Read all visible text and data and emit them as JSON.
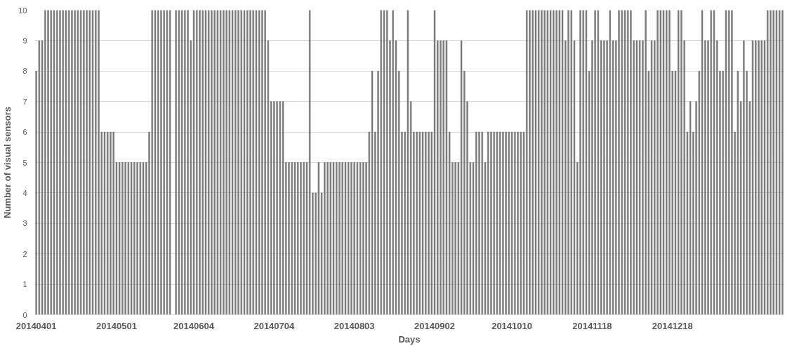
{
  "chart_data": {
    "type": "bar",
    "xlabel": "Days",
    "ylabel": "Number of visual sensors",
    "categories": [
      "20140401",
      null,
      null,
      null,
      null,
      null,
      null,
      null,
      null,
      null,
      null,
      null,
      null,
      null,
      null,
      null,
      null,
      null,
      null,
      null,
      null,
      null,
      null,
      null,
      null,
      null,
      null,
      "20140501",
      null,
      null,
      null,
      null,
      null,
      null,
      null,
      null,
      null,
      null,
      null,
      null,
      null,
      null,
      null,
      null,
      null,
      null,
      null,
      null,
      null,
      null,
      null,
      null,
      null,
      "20140604",
      null,
      null,
      null,
      null,
      null,
      null,
      null,
      null,
      null,
      null,
      null,
      null,
      null,
      null,
      null,
      null,
      null,
      null,
      null,
      null,
      null,
      null,
      null,
      null,
      null,
      null,
      "20140704",
      null,
      null,
      null,
      null,
      null,
      null,
      null,
      null,
      null,
      null,
      null,
      null,
      null,
      null,
      null,
      null,
      null,
      null,
      null,
      null,
      null,
      null,
      null,
      null,
      null,
      null,
      "20140803",
      null,
      null,
      null,
      null,
      null,
      null,
      null,
      null,
      null,
      null,
      null,
      null,
      null,
      null,
      null,
      null,
      null,
      null,
      null,
      null,
      null,
      null,
      null,
      null,
      null,
      null,
      "20140902",
      null,
      null,
      null,
      null,
      null,
      null,
      null,
      null,
      null,
      null,
      null,
      null,
      null,
      null,
      null,
      null,
      null,
      null,
      null,
      null,
      null,
      null,
      null,
      null,
      null,
      "20141010",
      null,
      null,
      null,
      null,
      null,
      null,
      null,
      null,
      null,
      null,
      null,
      null,
      null,
      null,
      null,
      null,
      null,
      null,
      null,
      null,
      null,
      null,
      null,
      null,
      null,
      null,
      "20141118",
      null,
      null,
      null,
      null,
      null,
      null,
      null,
      null,
      null,
      null,
      null,
      null,
      null,
      null,
      null,
      null,
      null,
      null,
      null,
      null,
      null,
      null,
      null,
      null,
      null,
      null,
      "20141218",
      null,
      null,
      null,
      null,
      null,
      null,
      null,
      null,
      null,
      null,
      null,
      null,
      null,
      null,
      null,
      null,
      null,
      null,
      null,
      null,
      null,
      null,
      null,
      null,
      null,
      null,
      null,
      null,
      null,
      null,
      null,
      null,
      null,
      null,
      null,
      null,
      null
    ],
    "values": [
      8,
      9,
      9,
      10,
      10,
      10,
      10,
      10,
      10,
      10,
      10,
      10,
      10,
      10,
      10,
      10,
      10,
      10,
      10,
      10,
      10,
      10,
      6,
      6,
      6,
      6,
      6,
      5,
      5,
      5,
      5,
      5,
      5,
      5,
      5,
      5,
      5,
      5,
      6,
      10,
      10,
      10,
      10,
      10,
      10,
      10,
      null,
      10,
      10,
      10,
      10,
      10,
      9,
      10,
      10,
      10,
      10,
      10,
      10,
      10,
      10,
      10,
      10,
      10,
      10,
      10,
      10,
      10,
      10,
      10,
      10,
      10,
      10,
      10,
      10,
      10,
      10,
      10,
      9,
      7,
      7,
      7,
      7,
      7,
      5,
      5,
      5,
      5,
      5,
      5,
      5,
      5,
      10,
      4,
      4,
      5,
      4,
      5,
      5,
      5,
      5,
      5,
      5,
      5,
      5,
      5,
      5,
      5,
      5,
      5,
      5,
      5,
      6,
      8,
      6,
      8,
      10,
      10,
      10,
      9,
      10,
      9,
      8,
      6,
      6,
      10,
      7,
      6,
      6,
      6,
      6,
      6,
      6,
      6,
      10,
      9,
      9,
      9,
      9,
      6,
      5,
      5,
      5,
      9,
      8,
      7,
      5,
      5,
      6,
      6,
      6,
      5,
      6,
      6,
      6,
      6,
      6,
      6,
      6,
      6,
      6,
      6,
      6,
      6,
      6,
      10,
      10,
      10,
      10,
      10,
      10,
      10,
      10,
      10,
      10,
      10,
      10,
      10,
      9,
      10,
      10,
      9,
      5,
      10,
      10,
      10,
      8,
      9,
      10,
      10,
      9,
      9,
      9,
      10,
      9,
      9,
      10,
      10,
      10,
      10,
      10,
      9,
      9,
      9,
      9,
      10,
      8,
      9,
      9,
      10,
      10,
      10,
      10,
      10,
      8,
      8,
      10,
      10,
      9,
      6,
      7,
      6,
      7,
      8,
      10,
      9,
      9,
      10,
      10,
      9,
      8,
      8,
      10,
      10,
      10,
      6,
      8,
      7,
      9,
      8,
      7,
      9,
      9,
      9,
      9,
      9,
      10,
      10,
      10,
      10,
      10,
      10
    ],
    "color": "#7f7f7f",
    "ylim": [
      0,
      10
    ],
    "yticks": [
      0,
      1,
      2,
      3,
      4,
      5,
      6,
      7,
      8,
      9,
      10
    ],
    "grid": "y"
  }
}
